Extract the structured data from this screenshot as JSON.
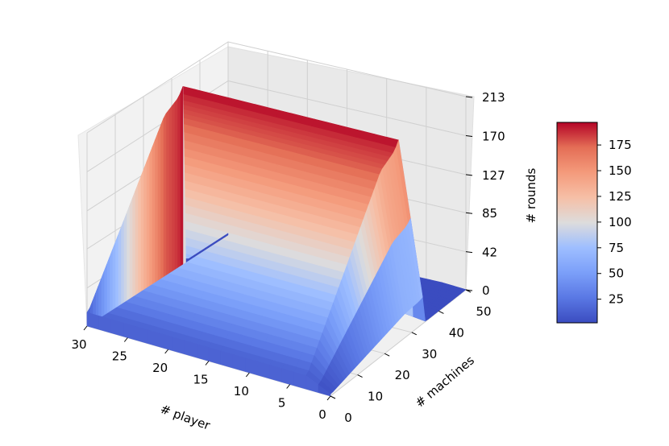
{
  "chart_data": {
    "type": "surface3d",
    "xlabel": "# player",
    "ylabel": "# machines",
    "zlabel": "# rounds",
    "x_ticks": [
      "30",
      "25",
      "20",
      "15",
      "10",
      "5",
      "0"
    ],
    "y_ticks": [
      "0",
      "10",
      "20",
      "30",
      "40",
      "50"
    ],
    "z_ticks": [
      "0",
      "42",
      "85",
      "127",
      "170",
      "213"
    ],
    "xlim": [
      0,
      30
    ],
    "ylim": [
      0,
      50
    ],
    "zlim": [
      0,
      213
    ],
    "colormap": "coolwarm",
    "colorbar": {
      "ticks": [
        "25",
        "50",
        "75",
        "100",
        "125",
        "150",
        "175"
      ],
      "range": [
        2,
        197
      ]
    },
    "surface_profile": {
      "description_free_values": true,
      "machines": [
        0,
        1,
        2,
        3,
        4,
        5,
        6,
        7,
        8,
        9,
        10,
        11,
        12,
        13,
        14,
        15,
        16,
        17,
        18,
        19,
        20,
        21,
        22,
        23,
        24,
        25,
        26,
        27,
        28,
        29,
        30,
        31,
        32,
        33,
        34,
        35,
        36,
        37,
        38,
        39,
        40,
        41,
        42,
        43,
        44,
        45,
        46,
        47,
        48,
        49,
        50
      ],
      "rounds_at_max_players": [
        15,
        18,
        24,
        30,
        36,
        42,
        48,
        54,
        60,
        66,
        72,
        78,
        84,
        90,
        96,
        102,
        108,
        114,
        120,
        126,
        132,
        138,
        144,
        150,
        156,
        162,
        168,
        174,
        178,
        180,
        182,
        184,
        186,
        190,
        196,
        4,
        2,
        2,
        2,
        2,
        2,
        2,
        2,
        2,
        2,
        2,
        2,
        2,
        2,
        2,
        2
      ]
    },
    "grid": true,
    "legend": "colorbar-right"
  }
}
